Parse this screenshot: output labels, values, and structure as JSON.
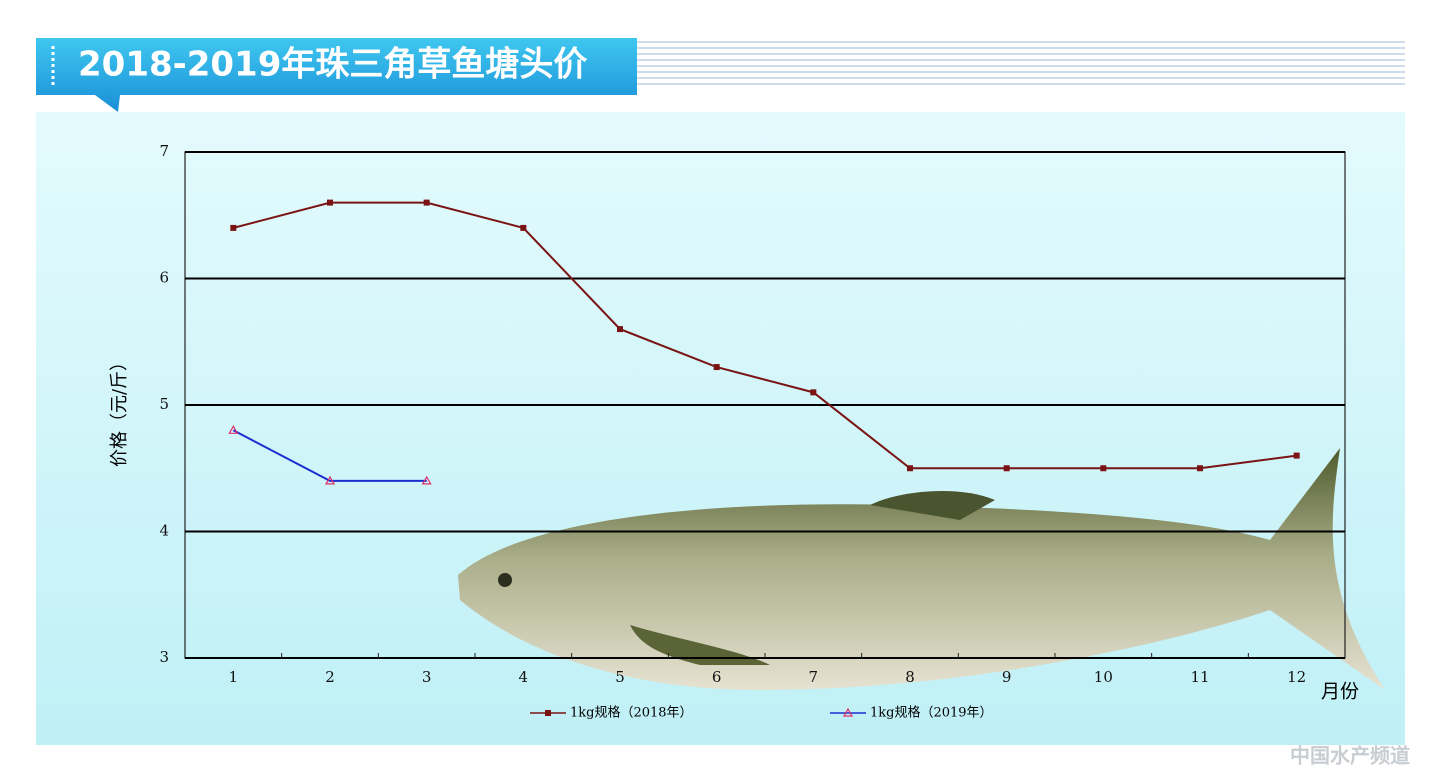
{
  "chart_data": {
    "type": "line",
    "title": "2018-2019年珠三角草鱼塘头价",
    "x_label": "月份",
    "y_label": "价格（元/斤）",
    "categories": [
      "1",
      "2",
      "3",
      "4",
      "5",
      "6",
      "7",
      "8",
      "9",
      "10",
      "11",
      "12"
    ],
    "series": [
      {
        "name": "1kg规格（2018年）",
        "color": "#7a1414",
        "marker": "square",
        "values": [
          6.4,
          6.6,
          6.6,
          6.4,
          5.6,
          5.3,
          5.1,
          4.5,
          4.5,
          4.5,
          4.5,
          4.6
        ]
      },
      {
        "name": "1kg规格（2019年）",
        "color": "#1a2fd0",
        "marker": "triangle",
        "marker_color": "#e0306a",
        "values": [
          4.8,
          4.4,
          4.4,
          null,
          null,
          null,
          null,
          null,
          null,
          null,
          null,
          null
        ]
      }
    ],
    "ylim": [
      3,
      7
    ],
    "yticks": [
      3,
      4,
      5,
      6,
      7
    ],
    "grid": true,
    "watermark": "中国水产频道"
  }
}
